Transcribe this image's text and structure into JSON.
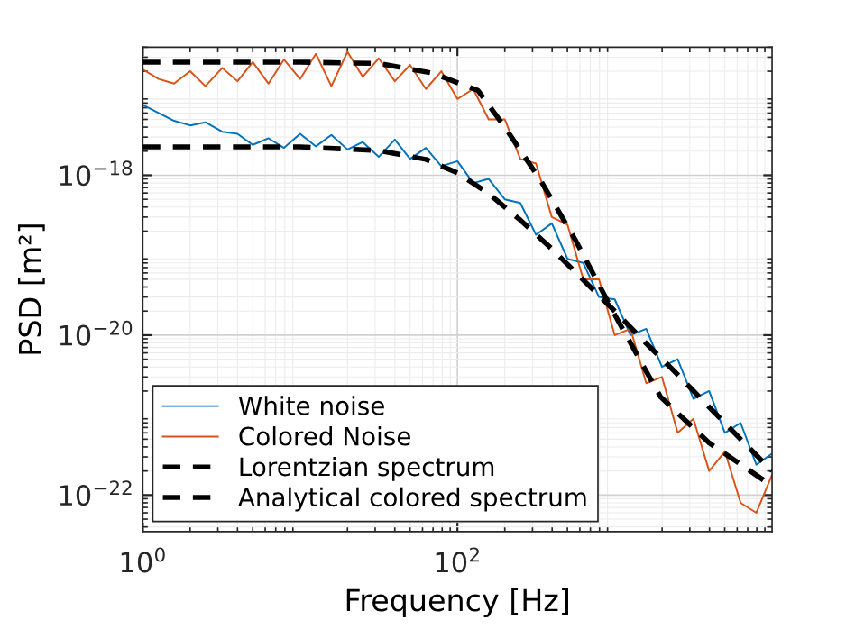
{
  "chart_data": {
    "type": "line",
    "xlabel": "Frequency [Hz]",
    "ylabel": "PSD [m²]",
    "log": "xy",
    "grid": true,
    "legend": "bottom left",
    "marker": "none",
    "xlim": [
      1,
      10000
    ],
    "ylim": [
      3.5e-23,
      4e-17
    ],
    "xticks": [
      {
        "value": 1,
        "label": "10$^{0}$"
      },
      {
        "value": 100,
        "label": "10$^{2}$"
      }
    ],
    "yticks": [
      {
        "value": 1e-22,
        "label": "10$^{−22}$"
      },
      {
        "value": 1e-20,
        "label": "10$^{−20}$"
      },
      {
        "value": 1e-18,
        "label": "10$^{−18}$"
      }
    ],
    "series": [
      {
        "name": "White noise",
        "color": "#0072bd",
        "line_style": "solid",
        "x": [
          1,
          1.26,
          1.58,
          2,
          2.5,
          3.2,
          4,
          5,
          6.3,
          7.9,
          10,
          12.6,
          15.8,
          20,
          25,
          31.6,
          40,
          50,
          63,
          79,
          100,
          126,
          158,
          200,
          251,
          316,
          398,
          501,
          631,
          794,
          1000,
          1259,
          1585,
          1995,
          2512,
          3162,
          3981,
          5012,
          6310,
          7943,
          10000
        ],
        "values": [
          7.6e-18,
          6e-18,
          4.8e-18,
          4.2e-18,
          4.6e-18,
          3.5e-18,
          3.3e-18,
          2.4e-18,
          2.9e-18,
          2.2e-18,
          3.3e-18,
          2.3e-18,
          3.2e-18,
          2.1e-18,
          2.6e-18,
          1.7e-18,
          2.8e-18,
          1.6e-18,
          2.2e-18,
          1.3e-18,
          1.5e-18,
          8e-19,
          9e-19,
          5e-19,
          4.5e-19,
          1.8e-19,
          2.5e-19,
          9e-20,
          8e-20,
          3e-20,
          2.8e-20,
          1e-20,
          1.2e-20,
          4e-21,
          5e-21,
          1.6e-21,
          2e-21,
          6e-22,
          8e-22,
          2.4e-22,
          3.3e-22
        ]
      },
      {
        "name": "Colored Noise",
        "color": "#d95319",
        "line_style": "solid",
        "x": [
          1,
          1.26,
          1.58,
          2,
          2.5,
          3.2,
          4,
          5,
          6.3,
          7.9,
          10,
          12.6,
          15.8,
          20,
          25,
          31.6,
          40,
          50,
          63,
          79,
          100,
          126,
          158,
          200,
          251,
          316,
          398,
          501,
          631,
          794,
          1000,
          1259,
          1585,
          1995,
          2512,
          3162,
          3981,
          5012,
          6310,
          7943,
          10000
        ],
        "values": [
          2.1e-17,
          1.6e-17,
          1.4e-17,
          2e-17,
          1.3e-17,
          2.2e-17,
          1.5e-17,
          2.6e-17,
          1.4e-17,
          2.8e-17,
          1.6e-17,
          3.3e-17,
          1.3e-17,
          3.5e-17,
          1.7e-17,
          2.9e-17,
          1.5e-17,
          2.4e-17,
          1.2e-17,
          2e-17,
          9e-18,
          1.2e-17,
          5e-18,
          5e-18,
          1.6e-18,
          1.4e-18,
          3e-19,
          2.4e-19,
          5e-20,
          5e-20,
          1e-20,
          1.2e-20,
          2.5e-21,
          3e-21,
          6e-22,
          9e-22,
          2e-22,
          3.5e-22,
          8e-23,
          6e-23,
          1.8e-22
        ]
      },
      {
        "name": "Lorentzian spectrum",
        "color": "#000000",
        "line_style": "dashed",
        "x": [
          1,
          10,
          31.6,
          63,
          100,
          158,
          251,
          398,
          631,
          1000,
          1585,
          2512,
          3981,
          6310,
          10000
        ],
        "values": [
          2.26e-18,
          2.26e-18,
          2.04e-18,
          1.58e-18,
          1.07e-18,
          5.9e-19,
          2.75e-19,
          1.2e-19,
          4.9e-20,
          2e-20,
          7.9e-21,
          3.2e-21,
          1.26e-21,
          5e-22,
          2e-22
        ]
      },
      {
        "name": "Analytical colored spectrum",
        "color": "#000000",
        "line_style": "dashed",
        "x": [
          1,
          10,
          31.6,
          69,
          135,
          200,
          339,
          562,
          1000,
          1950,
          3981,
          10000
        ],
        "values": [
          2.6e-17,
          2.6e-17,
          2.5e-17,
          1.9e-17,
          1.15e-17,
          4e-18,
          8.5e-19,
          1.55e-19,
          1.8e-20,
          1.7e-21,
          4.5e-22,
          1.3e-22
        ]
      }
    ]
  }
}
